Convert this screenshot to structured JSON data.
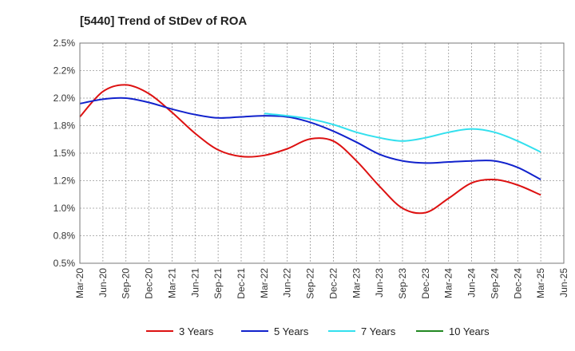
{
  "chart_data": {
    "type": "line",
    "title": "[5440]  Trend of StDev of ROA",
    "xlabel": "",
    "ylabel": "",
    "x_ticks": [
      "Mar-20",
      "Jun-20",
      "Sep-20",
      "Dec-20",
      "Mar-21",
      "Jun-21",
      "Sep-21",
      "Dec-21",
      "Mar-22",
      "Jun-22",
      "Sep-22",
      "Dec-22",
      "Mar-23",
      "Jun-23",
      "Sep-23",
      "Dec-23",
      "Mar-24",
      "Jun-24",
      "Sep-24",
      "Dec-24",
      "Mar-25",
      "Jun-25"
    ],
    "y_ticks": [
      "0.5%",
      "0.8%",
      "1.0%",
      "1.2%",
      "1.5%",
      "1.8%",
      "2.0%",
      "2.2%",
      "2.5%"
    ],
    "ylim": [
      0.5,
      2.5
    ],
    "grid": true,
    "legend_position": "bottom",
    "series": [
      {
        "name": "3 Years",
        "color": "#dd1111",
        "x": [
          "Mar-20",
          "Jun-20",
          "Sep-20",
          "Dec-20",
          "Mar-21",
          "Jun-21",
          "Sep-21",
          "Dec-21",
          "Mar-22",
          "Jun-22",
          "Sep-22",
          "Dec-22",
          "Mar-23",
          "Jun-23",
          "Sep-23",
          "Dec-23",
          "Mar-24",
          "Jun-24",
          "Sep-24",
          "Dec-24",
          "Mar-25"
        ],
        "values": [
          1.83,
          2.06,
          2.12,
          2.04,
          1.87,
          1.68,
          1.53,
          1.47,
          1.48,
          1.54,
          1.63,
          1.61,
          1.43,
          1.2,
          1.0,
          0.96,
          1.09,
          1.23,
          1.26,
          1.21,
          1.12
        ]
      },
      {
        "name": "5 Years",
        "color": "#1122cc",
        "x": [
          "Mar-20",
          "Jun-20",
          "Sep-20",
          "Dec-20",
          "Mar-21",
          "Jun-21",
          "Sep-21",
          "Dec-21",
          "Mar-22",
          "Jun-22",
          "Sep-22",
          "Dec-22",
          "Mar-23",
          "Jun-23",
          "Sep-23",
          "Dec-23",
          "Mar-24",
          "Jun-24",
          "Sep-24",
          "Dec-24",
          "Mar-25"
        ],
        "values": [
          1.95,
          1.99,
          2.0,
          1.96,
          1.9,
          1.85,
          1.82,
          1.83,
          1.84,
          1.83,
          1.78,
          1.7,
          1.6,
          1.49,
          1.43,
          1.41,
          1.42,
          1.43,
          1.43,
          1.37,
          1.26
        ]
      },
      {
        "name": "7 Years",
        "color": "#33e0ee",
        "x": [
          "Mar-22",
          "Jun-22",
          "Sep-22",
          "Dec-22",
          "Mar-23",
          "Jun-23",
          "Sep-23",
          "Dec-23",
          "Mar-24",
          "Jun-24",
          "Sep-24",
          "Dec-24",
          "Mar-25"
        ],
        "values": [
          1.86,
          1.84,
          1.81,
          1.76,
          1.69,
          1.64,
          1.61,
          1.64,
          1.69,
          1.72,
          1.69,
          1.61,
          1.51
        ]
      },
      {
        "name": "10 Years",
        "color": "#228822",
        "x": [],
        "values": []
      }
    ]
  }
}
